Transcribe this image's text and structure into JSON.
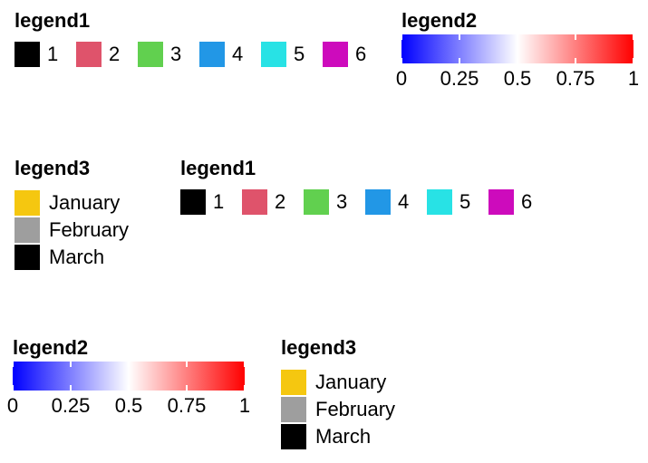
{
  "colors": {
    "legend1": [
      "#000000",
      "#DF536B",
      "#61D04F",
      "#2297E6",
      "#28E2E5",
      "#CD0BBC"
    ],
    "legend3": [
      "#F5C710",
      "#9E9E9E",
      "#000000"
    ],
    "colorbar": [
      "#0000FF",
      "#FFFFFF",
      "#FF0000"
    ]
  },
  "chart_data": [
    {
      "type": "legend-discrete",
      "title": "legend1",
      "orientation": "horizontal",
      "labels": [
        "1",
        "2",
        "3",
        "4",
        "5",
        "6"
      ]
    },
    {
      "type": "legend-continuous",
      "title": "legend2",
      "range": [
        0,
        1
      ],
      "ticks": [
        0,
        0.25,
        0.5,
        0.75,
        1
      ],
      "tick_labels": [
        "0",
        "0.25",
        "0.5",
        "0.75",
        "1"
      ],
      "colormap": "blue-white-red"
    },
    {
      "type": "legend-discrete",
      "title": "legend3",
      "orientation": "vertical",
      "labels": [
        "January",
        "February",
        "March"
      ]
    }
  ]
}
